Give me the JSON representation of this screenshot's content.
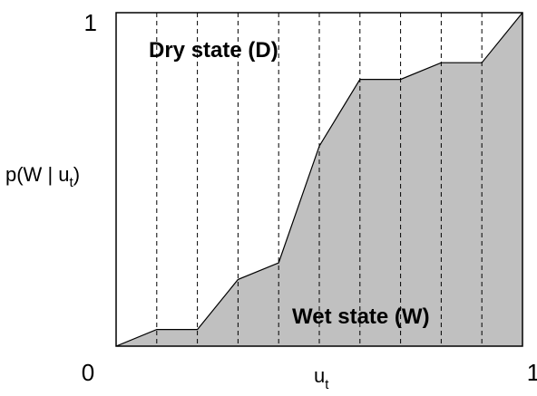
{
  "chart_data": {
    "type": "area",
    "title": "",
    "xlabel_main": "u",
    "xlabel_sub": "t",
    "ylabel_prefix": "p(W | u",
    "ylabel_sub": "t",
    "ylabel_suffix": ")",
    "xlim": [
      0,
      1
    ],
    "ylim": [
      0,
      1
    ],
    "x_tick_labels": {
      "min": "0",
      "max": "1"
    },
    "y_tick_labels": {
      "min": "0",
      "max": "1"
    },
    "grid": "vertical dashed lines at each bin boundary",
    "bin_boundaries": [
      0.1,
      0.2,
      0.3,
      0.4,
      0.5,
      0.6,
      0.7,
      0.8,
      0.9
    ],
    "series": [
      {
        "x": [
          0,
          0.1,
          0.2,
          0.3,
          0.4,
          0.5,
          0.6,
          0.7,
          0.8,
          0.9,
          1.0
        ],
        "y": [
          0,
          0.05,
          0.05,
          0.2,
          0.25,
          0.6,
          0.8,
          0.8,
          0.85,
          0.85,
          1.0
        ]
      }
    ],
    "annotations": {
      "upper_region": "Dry state (D)",
      "lower_region": "Wet state (W)"
    },
    "colors": {
      "fill": "#c0c0c0",
      "line": "#000000",
      "grid": "#000000"
    }
  }
}
